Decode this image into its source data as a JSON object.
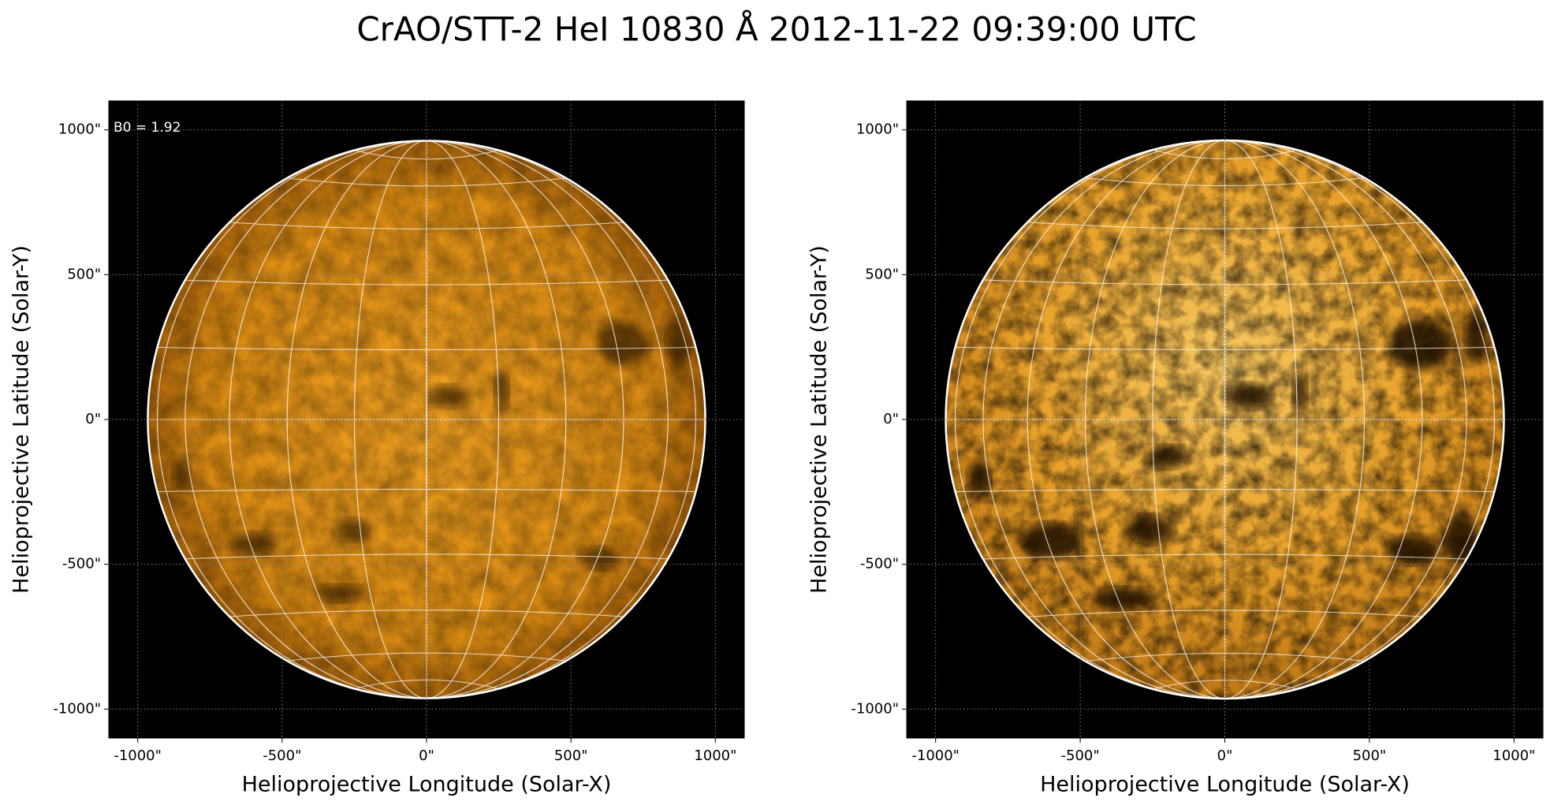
{
  "figure": {
    "title": "CrAO/STT-2 HeI 10830 Å 2012-11-22 09:39:00 UTC",
    "panels": [
      {
        "annotation": "B0 = 1.92",
        "xlabel": "Helioprojective Longitude (Solar-X)",
        "ylabel": "Helioprojective Latitude (Solar-Y)",
        "xlim": [
          -1100,
          1100
        ],
        "ylim": [
          -1100,
          1100
        ],
        "xticks": [
          {
            "value": -1000,
            "label": "-1000\""
          },
          {
            "value": -500,
            "label": "-500\""
          },
          {
            "value": 0,
            "label": "0\""
          },
          {
            "value": 500,
            "label": "500\""
          },
          {
            "value": 1000,
            "label": "1000\""
          }
        ],
        "yticks": [
          {
            "value": -1000,
            "label": "-1000\""
          },
          {
            "value": -500,
            "label": "-500\""
          },
          {
            "value": 0,
            "label": "0\""
          },
          {
            "value": 500,
            "label": "500\""
          },
          {
            "value": 1000,
            "label": "1000\""
          }
        ]
      },
      {
        "xlabel": "Helioprojective Longitude (Solar-X)",
        "ylabel": "Helioprojective Latitude (Solar-Y)",
        "xlim": [
          -1100,
          1100
        ],
        "ylim": [
          -1100,
          1100
        ],
        "xticks": [
          {
            "value": -1000,
            "label": "-1000\""
          },
          {
            "value": -500,
            "label": "-500\""
          },
          {
            "value": 0,
            "label": "0\""
          },
          {
            "value": 500,
            "label": "500\""
          },
          {
            "value": 1000,
            "label": "1000\""
          }
        ],
        "yticks": [
          {
            "value": -1000,
            "label": "-1000\""
          },
          {
            "value": -500,
            "label": "-500\""
          },
          {
            "value": 0,
            "label": "0\""
          },
          {
            "value": 500,
            "label": "500\""
          },
          {
            "value": 1000,
            "label": "1000\""
          }
        ]
      }
    ]
  }
}
